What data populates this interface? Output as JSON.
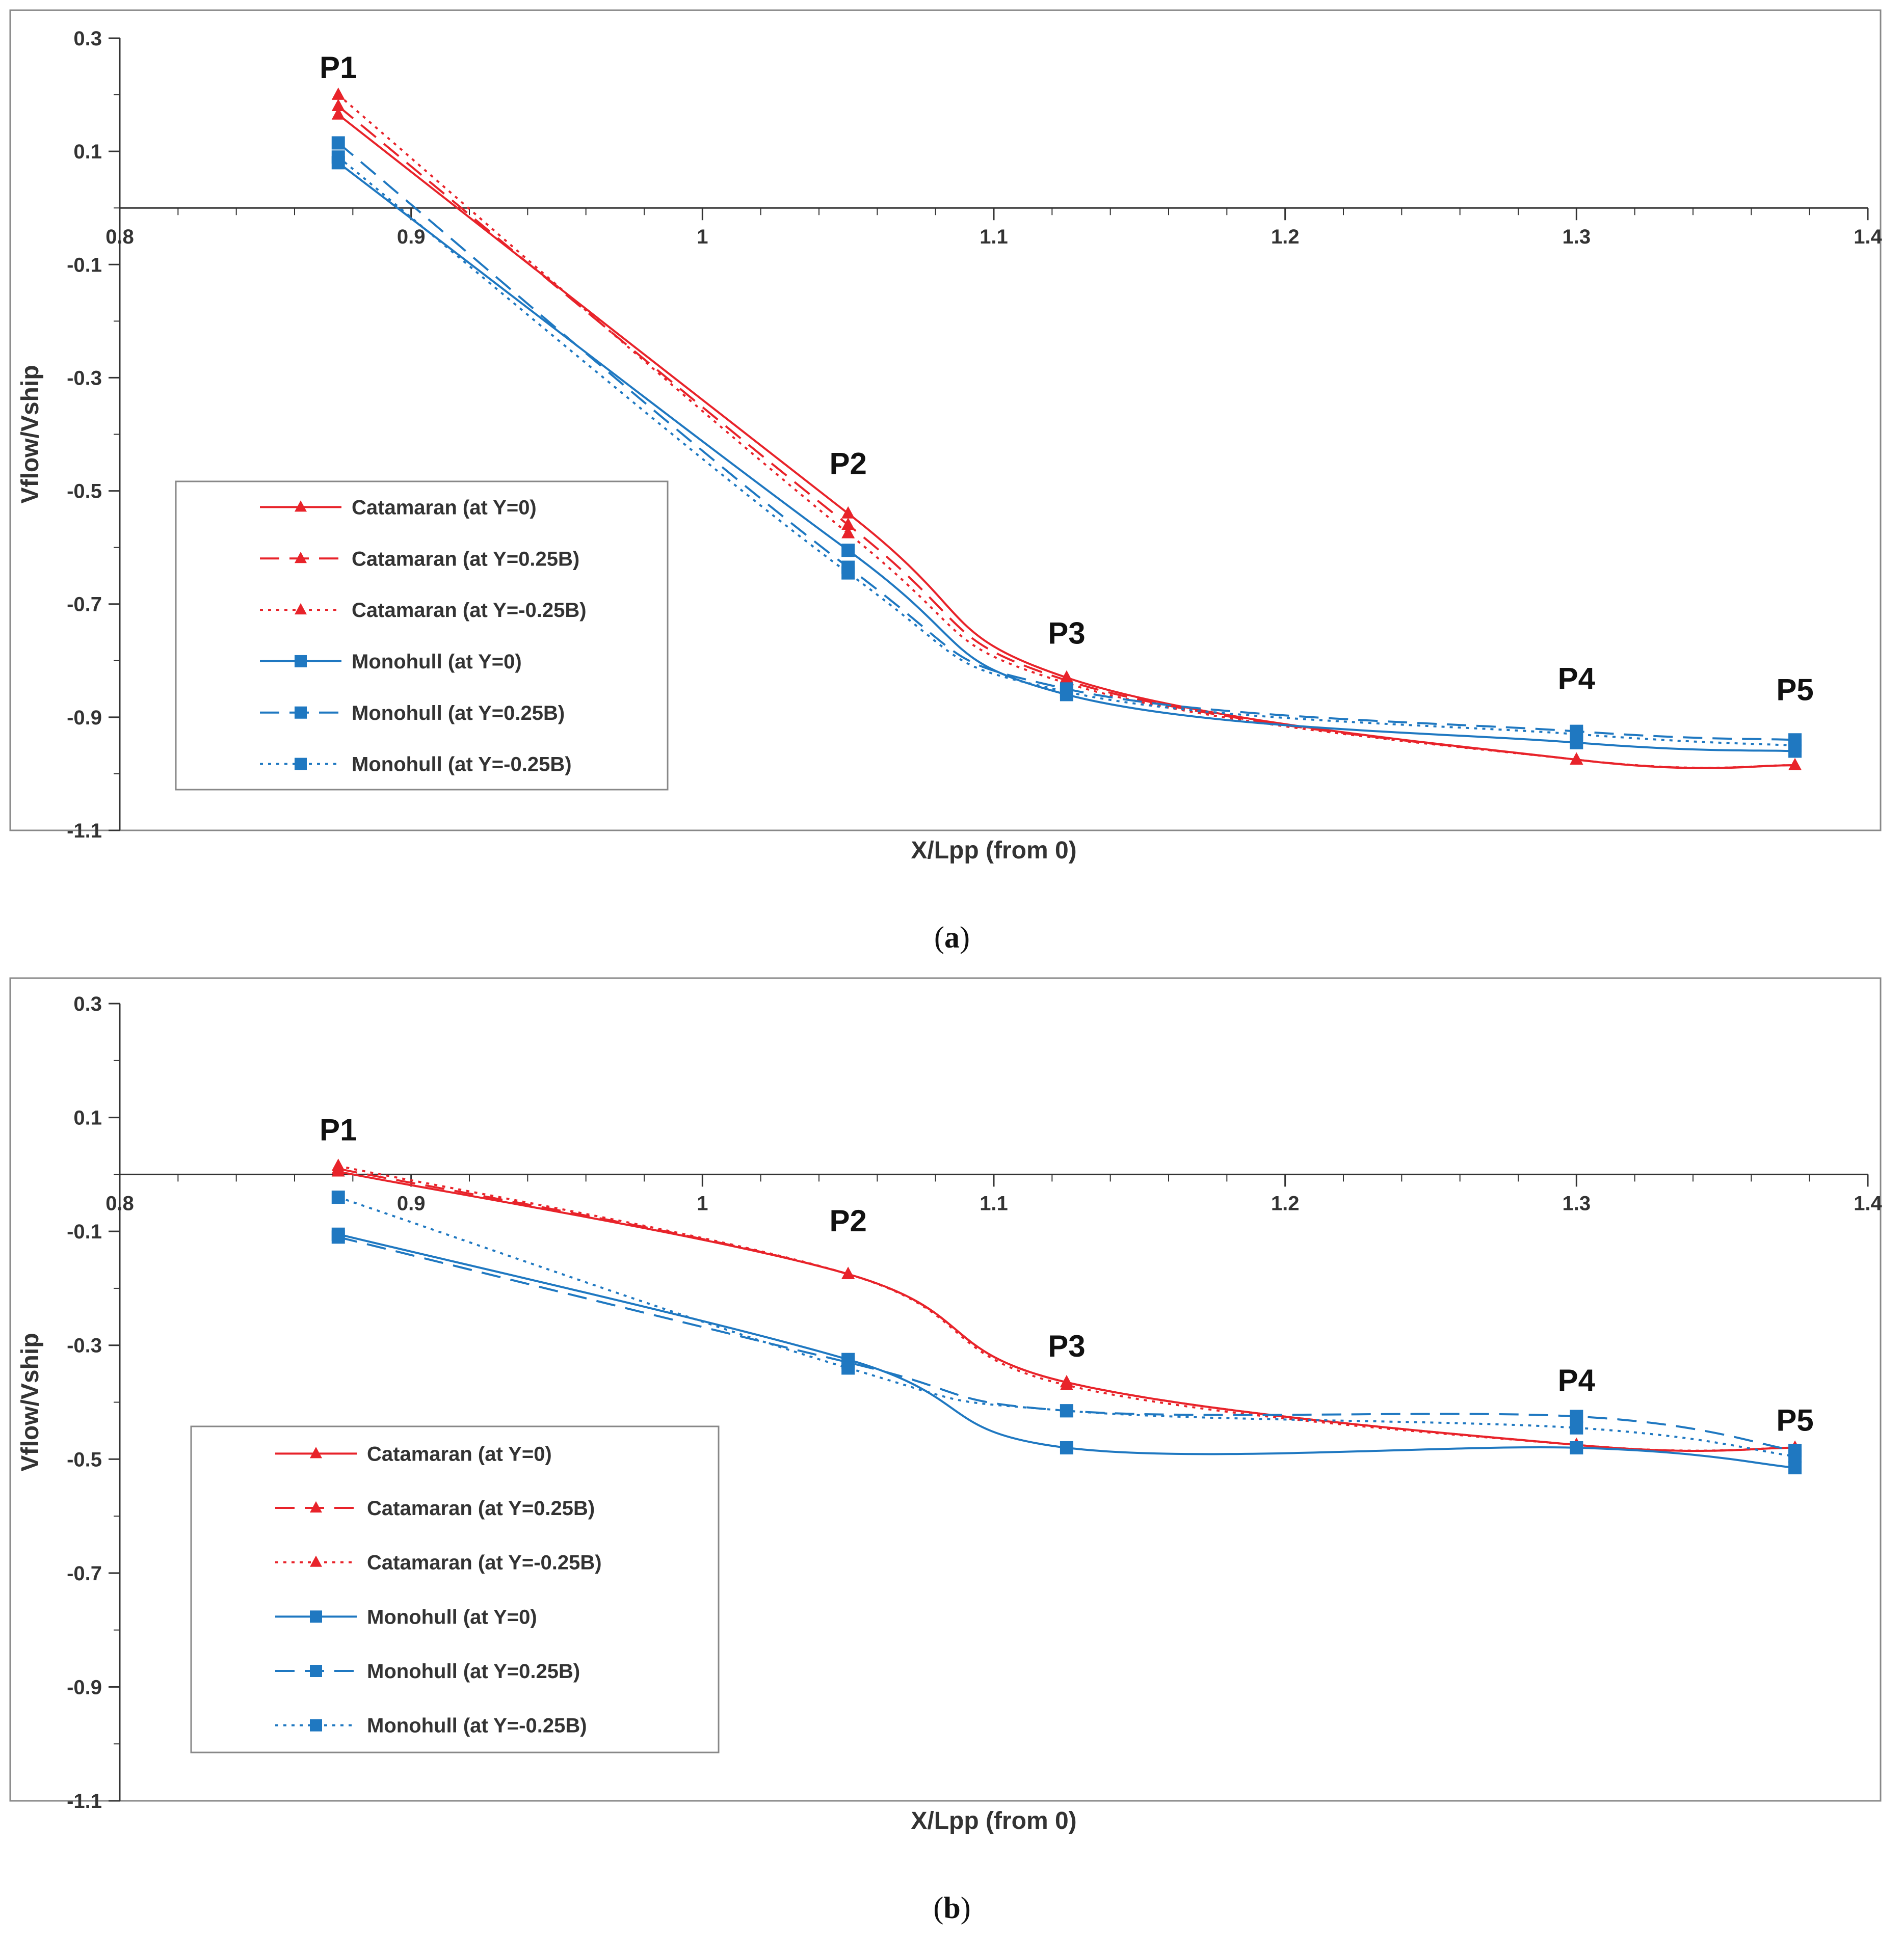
{
  "colors": {
    "catamaran": "#e8232a",
    "monohull": "#1f78c1",
    "axis": "#333333",
    "frame": "#888888"
  },
  "chart_data": [
    {
      "type": "line",
      "panel": "a",
      "caption_letter": "a",
      "xlabel": "X/Lpp (from 0)",
      "ylabel": "Vflow/Vship",
      "xlim": [
        0.8,
        1.4
      ],
      "ylim": [
        -1.1,
        0.3
      ],
      "xticks": [
        "0.8",
        "0.9",
        "1",
        "1.1",
        "1.2",
        "1.3",
        "1.4"
      ],
      "yticks": [
        "0.3",
        "0.1",
        "-0.1",
        "-0.3",
        "-0.5",
        "-0.7",
        "-0.9",
        "-1.1"
      ],
      "x": [
        0.875,
        1.05,
        1.125,
        1.3,
        1.375
      ],
      "point_labels": [
        "P1",
        "P2",
        "P3",
        "P4",
        "P5"
      ],
      "point_label_y": [
        0.23,
        -0.47,
        -0.77,
        -0.85,
        -0.87
      ],
      "legend_position": "left",
      "series": [
        {
          "name": "Catamaran (at Y=0)",
          "hull": "catamaran",
          "style": "solid",
          "values": [
            0.165,
            -0.54,
            -0.83,
            -0.975,
            -0.985
          ]
        },
        {
          "name": "Catamaran (at Y=0.25B)",
          "hull": "catamaran",
          "style": "dashed",
          "values": [
            0.18,
            -0.56,
            -0.835,
            -0.975,
            -0.985
          ]
        },
        {
          "name": "Catamaran (at Y=-0.25B)",
          "hull": "catamaran",
          "style": "dotted",
          "values": [
            0.2,
            -0.575,
            -0.84,
            -0.975,
            -0.985
          ]
        },
        {
          "name": "Monohull (at Y=0)",
          "hull": "monohull",
          "style": "solid",
          "values": [
            0.08,
            -0.605,
            -0.86,
            -0.945,
            -0.96
          ]
        },
        {
          "name": "Monohull (at Y=0.25B)",
          "hull": "monohull",
          "style": "dashed",
          "values": [
            0.115,
            -0.635,
            -0.85,
            -0.925,
            -0.94
          ]
        },
        {
          "name": "Monohull (at Y=-0.25B)",
          "hull": "monohull",
          "style": "dotted",
          "values": [
            0.09,
            -0.645,
            -0.855,
            -0.93,
            -0.95
          ]
        }
      ]
    },
    {
      "type": "line",
      "panel": "b",
      "caption_letter": "b",
      "xlabel": "X/Lpp (from 0)",
      "ylabel": "Vflow/Vship",
      "xlim": [
        0.8,
        1.4
      ],
      "ylim": [
        -1.1,
        0.3
      ],
      "xticks": [
        "0.8",
        "0.9",
        "1",
        "1.1",
        "1.2",
        "1.3",
        "1.4"
      ],
      "yticks": [
        "0.3",
        "0.1",
        "-0.1",
        "-0.3",
        "-0.5",
        "-0.7",
        "-0.9",
        "-1.1"
      ],
      "x": [
        0.875,
        1.05,
        1.125,
        1.3,
        1.375
      ],
      "point_labels": [
        "P1",
        "P2",
        "P3",
        "P4",
        "P5"
      ],
      "point_label_y": [
        0.06,
        -0.1,
        -0.32,
        -0.38,
        -0.45
      ],
      "legend_position": "left",
      "series": [
        {
          "name": "Catamaran (at Y=0)",
          "hull": "catamaran",
          "style": "solid",
          "values": [
            0.005,
            -0.175,
            -0.365,
            -0.475,
            -0.48
          ]
        },
        {
          "name": "Catamaran (at Y=0.25B)",
          "hull": "catamaran",
          "style": "dashed",
          "values": [
            0.01,
            -0.175,
            -0.365,
            -0.475,
            -0.48
          ]
        },
        {
          "name": "Catamaran (at Y=-0.25B)",
          "hull": "catamaran",
          "style": "dotted",
          "values": [
            0.015,
            -0.175,
            -0.37,
            -0.475,
            -0.48
          ]
        },
        {
          "name": "Monohull (at Y=0)",
          "hull": "monohull",
          "style": "solid",
          "values": [
            -0.105,
            -0.325,
            -0.48,
            -0.48,
            -0.515
          ]
        },
        {
          "name": "Monohull (at Y=0.25B)",
          "hull": "monohull",
          "style": "dashed",
          "values": [
            -0.11,
            -0.33,
            -0.415,
            -0.425,
            -0.485
          ]
        },
        {
          "name": "Monohull (at Y=-0.25B)",
          "hull": "monohull",
          "style": "dotted",
          "values": [
            -0.04,
            -0.34,
            -0.415,
            -0.445,
            -0.495
          ]
        }
      ]
    }
  ]
}
